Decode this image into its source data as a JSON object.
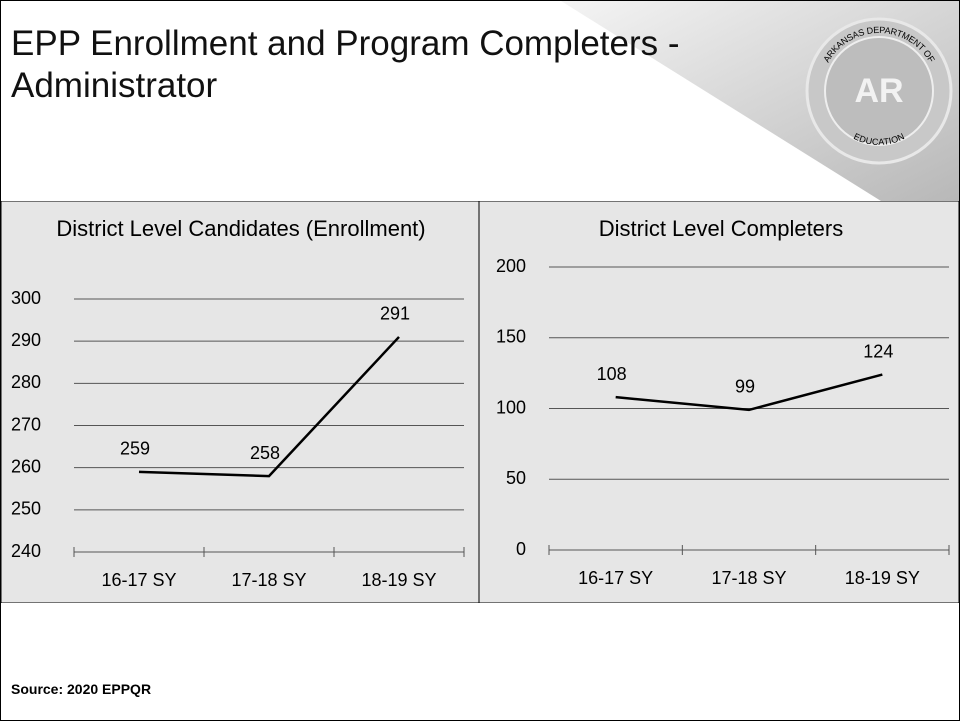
{
  "title": "EPP Enrollment and Program Completers - Administrator",
  "logo": {
    "ring_top": "ARKANSAS DEPARTMENT OF",
    "ring_bottom": "EDUCATION",
    "mark": "AR"
  },
  "source": "Source: 2020 EPPQR",
  "chart_data": [
    {
      "type": "line",
      "title": "District Level Candidates (Enrollment)",
      "categories": [
        "16-17 SY",
        "17-18 SY",
        "18-19 SY"
      ],
      "values": [
        259,
        258,
        291
      ],
      "color": "#000000",
      "ylim": [
        240,
        300
      ],
      "yticks": [
        240,
        250,
        260,
        270,
        280,
        290,
        300
      ],
      "grid": true
    },
    {
      "type": "line",
      "title": "District Level Completers",
      "categories": [
        "16-17 SY",
        "17-18 SY",
        "18-19 SY"
      ],
      "values": [
        108,
        99,
        124
      ],
      "color": "#000000",
      "ylim": [
        0,
        200
      ],
      "yticks": [
        0,
        50,
        100,
        150,
        200
      ],
      "grid": true
    }
  ]
}
